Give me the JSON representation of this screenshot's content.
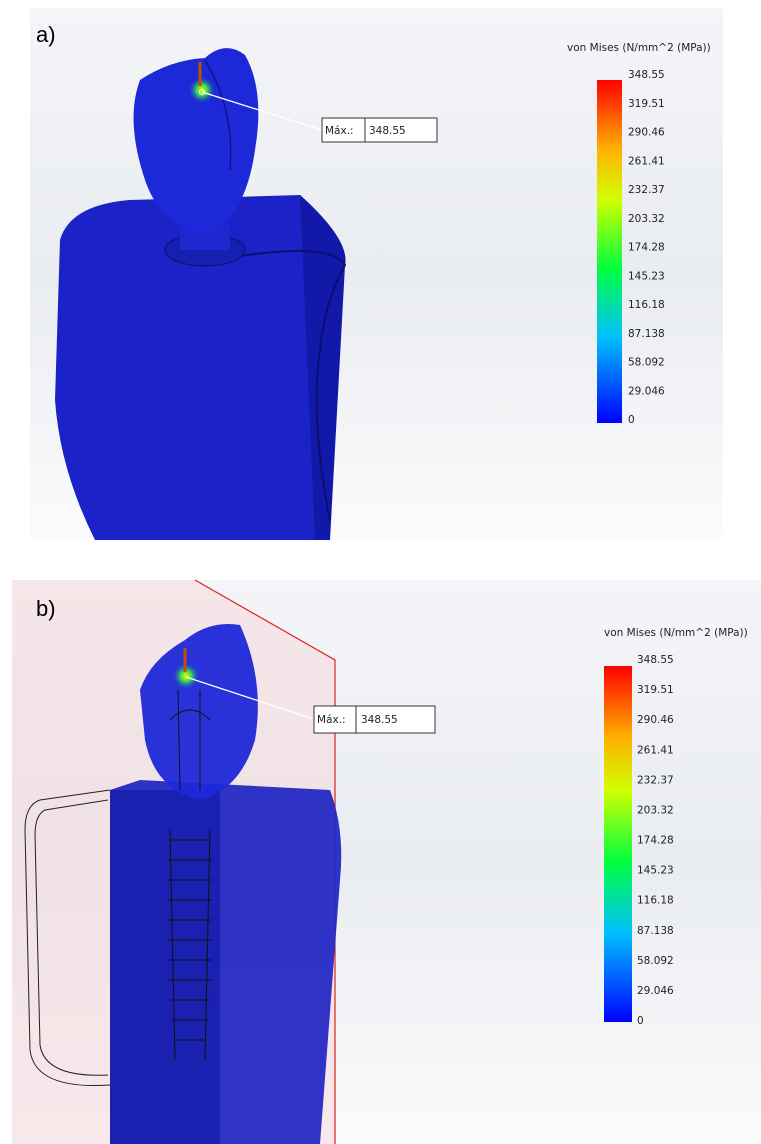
{
  "panels": [
    {
      "label": "a)",
      "legend_title": "von Mises (N/mm^2 (MPa))",
      "max_label": "Máx.:",
      "max_value": "348.55",
      "legend_ticks": [
        "348.55",
        "319.51",
        "290.46",
        "261.41",
        "232.37",
        "203.32",
        "174.28",
        "145.23",
        "116.18",
        "87.138",
        "58.092",
        "29.046",
        "0"
      ]
    },
    {
      "label": "b)",
      "legend_title": "von Mises (N/mm^2 (MPa))",
      "max_label": "Máx.:",
      "max_value": "348.55",
      "legend_ticks": [
        "348.55",
        "319.51",
        "290.46",
        "261.41",
        "232.37",
        "203.32",
        "174.28",
        "145.23",
        "116.18",
        "87.138",
        "58.092",
        "29.046",
        "0"
      ]
    }
  ]
}
